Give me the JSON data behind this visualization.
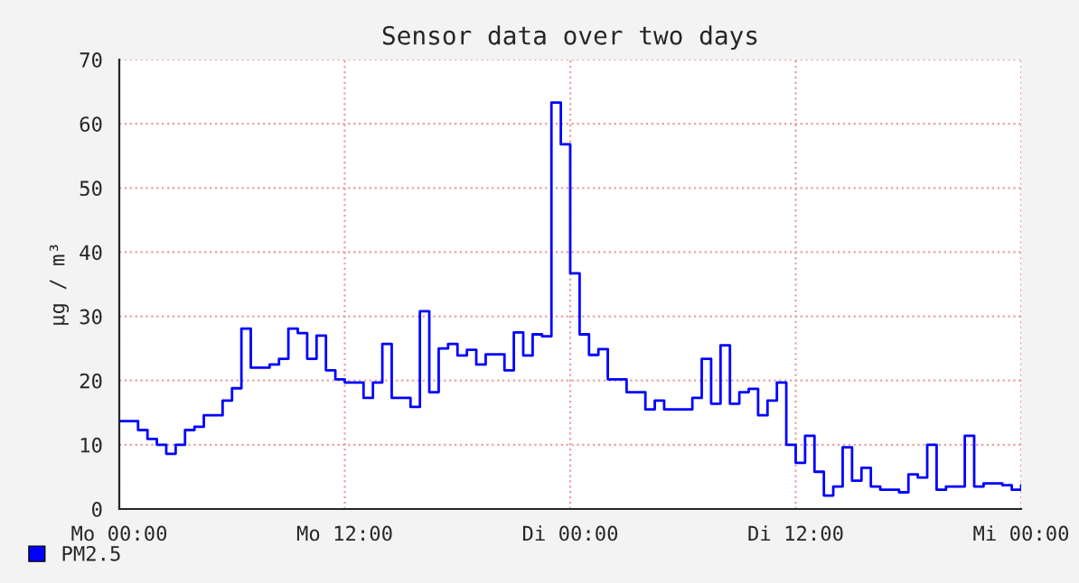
{
  "chart_data": {
    "type": "step",
    "title": "Sensor data over two days",
    "ylabel": "µg / m³",
    "categories": [
      "Mo 00:00",
      null,
      null,
      null,
      null,
      null,
      null,
      null,
      null,
      null,
      null,
      null,
      null,
      null,
      null,
      null,
      null,
      null,
      null,
      null,
      null,
      null,
      null,
      null,
      "Mo 12:00",
      null,
      null,
      null,
      null,
      null,
      null,
      null,
      null,
      null,
      null,
      null,
      null,
      null,
      null,
      null,
      null,
      null,
      null,
      null,
      null,
      null,
      null,
      null,
      "Di 00:00",
      null,
      null,
      null,
      null,
      null,
      null,
      null,
      null,
      null,
      null,
      null,
      null,
      null,
      null,
      null,
      null,
      null,
      null,
      null,
      null,
      null,
      null,
      null,
      "Di 12:00",
      null,
      null,
      null,
      null,
      null,
      null,
      null,
      null,
      null,
      null,
      null,
      null,
      null,
      null,
      null,
      null,
      null,
      null,
      null,
      null,
      null,
      null,
      null,
      "Mi 00:00"
    ],
    "ylim": [
      0,
      70
    ],
    "yticks": [
      0,
      10,
      20,
      30,
      40,
      50,
      60,
      70
    ],
    "grid": true,
    "legend": "bottom left",
    "line_style": "solid",
    "marker": "none",
    "series": [
      {
        "name": "PM2.5",
        "color": "#0000ff",
        "values": [
          13.7,
          13.7,
          12.3,
          10.9,
          10.0,
          8.6,
          10.0,
          12.3,
          12.8,
          14.6,
          14.6,
          16.9,
          18.8,
          28.1,
          22.0,
          22.0,
          22.5,
          23.4,
          28.1,
          27.4,
          23.4,
          27.0,
          21.6,
          20.2,
          19.7,
          19.7,
          17.3,
          19.7,
          25.7,
          17.3,
          17.3,
          15.9,
          30.8,
          18.2,
          25.0,
          25.7,
          23.9,
          24.8,
          22.5,
          24.1,
          24.1,
          21.6,
          27.5,
          23.9,
          27.2,
          26.9,
          63.3,
          56.8,
          36.7,
          27.2,
          24.0,
          24.9,
          20.2,
          20.2,
          18.2,
          18.2,
          15.5,
          16.9,
          15.5,
          15.5,
          15.5,
          17.3,
          23.4,
          16.4,
          25.5,
          16.4,
          18.2,
          18.7,
          14.6,
          16.9,
          19.7,
          10.0,
          7.2,
          11.4,
          5.8,
          2.1,
          3.5,
          9.6,
          4.4,
          6.4,
          3.5,
          3.0,
          3.0,
          2.6,
          5.4,
          4.9,
          10.0,
          3.0,
          3.5,
          3.5,
          11.4,
          3.5,
          4.0,
          4.0,
          3.7,
          3.0,
          3.7
        ]
      }
    ]
  }
}
